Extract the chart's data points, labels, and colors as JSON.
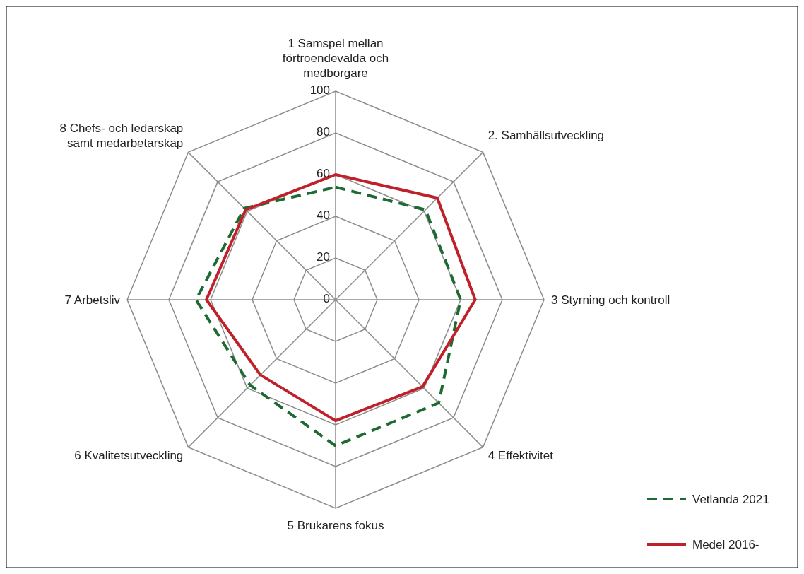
{
  "chart_data": {
    "type": "radar",
    "categories": [
      "1 Samspel mellan förtroendevalda och medborgare",
      "2. Samhällsutveckling",
      "3 Styrning och kontroll",
      "4 Effektivitet",
      "5 Brukarens fokus",
      "6 Kvalitetsutveckling",
      "7 Arbetsliv",
      "8 Chefs- och ledarskap samt medarbetarskap"
    ],
    "series": [
      {
        "name": "Vetlanda 2021",
        "color": "#1e6b32",
        "line_style": "dashed",
        "values": [
          54,
          61,
          60,
          70,
          70,
          58,
          67,
          62
        ]
      },
      {
        "name": "Medel 2016-",
        "color": "#c0202a",
        "line_style": "solid",
        "values": [
          60,
          69,
          67,
          59,
          58,
          51,
          62,
          61
        ]
      }
    ],
    "ylim": [
      0,
      100
    ],
    "yticks": [
      0,
      20,
      40,
      60,
      80,
      100
    ],
    "grid": true,
    "legend": "bottom right",
    "marker": "none"
  }
}
